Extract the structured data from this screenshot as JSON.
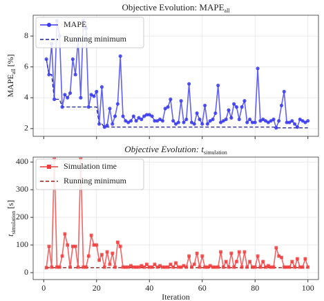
{
  "chart_data": [
    {
      "type": "line",
      "title": {
        "text": "Objective Evolution: MAPE",
        "sub": "all"
      },
      "ylabel": {
        "text": "MAPE",
        "sub": "all",
        "unit": " [%]"
      },
      "x": [
        1,
        2,
        3,
        4,
        5,
        6,
        7,
        8,
        9,
        10,
        11,
        12,
        13,
        14,
        15,
        16,
        17,
        18,
        19,
        20,
        21,
        22,
        23,
        24,
        25,
        26,
        27,
        28,
        29,
        30,
        31,
        32,
        33,
        34,
        35,
        36,
        37,
        38,
        39,
        40,
        41,
        42,
        43,
        44,
        45,
        46,
        47,
        48,
        49,
        50,
        51,
        52,
        53,
        54,
        55,
        56,
        57,
        58,
        59,
        60,
        61,
        62,
        63,
        64,
        65,
        66,
        67,
        68,
        69,
        70,
        71,
        72,
        73,
        74,
        75,
        76,
        77,
        78,
        79,
        80,
        81,
        82,
        83,
        84,
        85,
        86,
        87,
        88,
        89,
        90,
        91,
        92,
        93,
        94,
        95,
        96,
        97,
        98,
        99,
        100
      ],
      "series": [
        {
          "name": "MAPE",
          "color": "#3838f0",
          "marker": "circle",
          "dashed": false,
          "values": [
            6.5,
            5.5,
            7.5,
            3.9,
            9.0,
            8.0,
            3.4,
            4.2,
            4.0,
            4.3,
            6.5,
            5.5,
            7.8,
            4.0,
            9.0,
            8.5,
            3.4,
            4.2,
            4.1,
            4.4,
            2.3,
            4.7,
            2.1,
            2.2,
            3.3,
            2.3,
            2.8,
            3.6,
            6.7,
            2.8,
            2.5,
            2.4,
            2.5,
            2.8,
            2.5,
            2.7,
            2.6,
            2.8,
            2.9,
            2.9,
            2.8,
            2.5,
            2.5,
            2.6,
            2.5,
            3.3,
            3.4,
            3.9,
            2.5,
            2.3,
            2.4,
            3.8,
            2.4,
            2.6,
            4.9,
            2.4,
            2.3,
            3.0,
            2.6,
            2.3,
            3.5,
            2.3,
            2.5,
            2.6,
            3.0,
            4.8,
            2.4,
            2.5,
            2.6,
            3.2,
            2.7,
            3.6,
            3.4,
            2.6,
            3.4,
            3.8,
            2.4,
            2.6,
            2.4,
            2.4,
            5.9,
            2.5,
            2.6,
            2.5,
            2.4,
            2.5,
            2.6,
            2.05,
            2.5,
            3.5,
            4.4,
            2.4,
            2.4,
            2.5,
            2.3,
            2.1,
            2.6,
            2.5,
            2.4,
            2.5
          ]
        },
        {
          "name": "Running minimum",
          "color": "#1c1c8e",
          "marker": "none",
          "dashed": true,
          "values": [
            6.5,
            5.5,
            5.5,
            3.9,
            3.9,
            3.9,
            3.4,
            3.4,
            3.4,
            3.4,
            3.4,
            3.4,
            3.4,
            3.4,
            3.4,
            3.4,
            3.4,
            3.4,
            3.4,
            3.4,
            2.3,
            2.3,
            2.1,
            2.1,
            2.1,
            2.1,
            2.1,
            2.1,
            2.1,
            2.1,
            2.1,
            2.1,
            2.1,
            2.1,
            2.1,
            2.1,
            2.1,
            2.1,
            2.1,
            2.1,
            2.1,
            2.1,
            2.1,
            2.1,
            2.1,
            2.1,
            2.1,
            2.1,
            2.1,
            2.1,
            2.1,
            2.1,
            2.1,
            2.1,
            2.1,
            2.1,
            2.1,
            2.1,
            2.1,
            2.1,
            2.1,
            2.1,
            2.1,
            2.1,
            2.1,
            2.1,
            2.1,
            2.1,
            2.1,
            2.1,
            2.1,
            2.1,
            2.1,
            2.1,
            2.1,
            2.1,
            2.1,
            2.1,
            2.1,
            2.1,
            2.1,
            2.1,
            2.1,
            2.1,
            2.1,
            2.1,
            2.1,
            2.05,
            2.05,
            2.05,
            2.05,
            2.05,
            2.05,
            2.05,
            2.05,
            2.05,
            2.05,
            2.05,
            2.05,
            2.05
          ]
        }
      ],
      "xlim": [
        -4,
        104
      ],
      "xticks": [
        0,
        20,
        40,
        60,
        80,
        100
      ],
      "show_xtick_labels": false,
      "ylim": [
        1.5,
        9.35
      ],
      "yticks": [
        2,
        4,
        6,
        8
      ],
      "grid": true,
      "legend": "upper left"
    },
    {
      "type": "line",
      "title": {
        "text": "Objective Evolution: t",
        "sub": "simulation"
      },
      "ylabel": {
        "text": "t",
        "sub": "simulation",
        "unit": " [s]"
      },
      "xlabel": "Iteration",
      "x": [
        1,
        2,
        3,
        4,
        5,
        6,
        7,
        8,
        9,
        10,
        11,
        12,
        13,
        14,
        15,
        16,
        17,
        18,
        19,
        20,
        21,
        22,
        23,
        24,
        25,
        26,
        27,
        28,
        29,
        30,
        31,
        32,
        33,
        34,
        35,
        36,
        37,
        38,
        39,
        40,
        41,
        42,
        43,
        44,
        45,
        46,
        47,
        48,
        49,
        50,
        51,
        52,
        53,
        54,
        55,
        56,
        57,
        58,
        59,
        60,
        61,
        62,
        63,
        64,
        65,
        66,
        67,
        68,
        69,
        70,
        71,
        72,
        73,
        74,
        75,
        76,
        77,
        78,
        79,
        80,
        81,
        82,
        83,
        84,
        85,
        86,
        87,
        88,
        89,
        90,
        91,
        92,
        93,
        94,
        95,
        96,
        97,
        98,
        99,
        100
      ],
      "series": [
        {
          "name": "Simulation time",
          "color": "#f03c3c",
          "marker": "square",
          "dashed": false,
          "values": [
            18,
            95,
            20,
            410,
            20,
            20,
            60,
            140,
            100,
            20,
            95,
            95,
            20,
            410,
            20,
            20,
            60,
            135,
            100,
            100,
            45,
            65,
            20,
            75,
            30,
            70,
            20,
            110,
            95,
            20,
            20,
            20,
            25,
            20,
            20,
            20,
            25,
            20,
            30,
            20,
            20,
            30,
            20,
            25,
            20,
            20,
            20,
            30,
            20,
            35,
            20,
            20,
            25,
            20,
            60,
            20,
            30,
            70,
            20,
            60,
            20,
            20,
            25,
            20,
            20,
            20,
            75,
            20,
            40,
            20,
            70,
            20,
            40,
            75,
            20,
            75,
            20,
            40,
            20,
            20,
            60,
            20,
            40,
            20,
            25,
            20,
            20,
            90,
            60,
            55,
            20,
            20,
            20,
            40,
            20,
            50,
            20,
            20,
            50,
            20
          ]
        },
        {
          "name": "Running minimum",
          "color": "#8e1c1c",
          "marker": "none",
          "dashed": true,
          "values": [
            18,
            18,
            18,
            18,
            18,
            18,
            18,
            18,
            18,
            18,
            18,
            18,
            18,
            18,
            18,
            18,
            18,
            18,
            18,
            18,
            18,
            18,
            18,
            18,
            18,
            18,
            18,
            18,
            18,
            18,
            18,
            18,
            18,
            18,
            18,
            18,
            18,
            18,
            18,
            18,
            18,
            18,
            18,
            18,
            18,
            18,
            18,
            18,
            18,
            18,
            18,
            18,
            18,
            18,
            18,
            18,
            18,
            18,
            18,
            18,
            18,
            18,
            18,
            18,
            18,
            18,
            18,
            18,
            18,
            18,
            18,
            18,
            18,
            18,
            18,
            18,
            18,
            18,
            18,
            18,
            18,
            18,
            18,
            18,
            18,
            18,
            18,
            18,
            18,
            18,
            18,
            18,
            18,
            18,
            18,
            18,
            18,
            18,
            18,
            18
          ]
        }
      ],
      "xlim": [
        -4,
        104
      ],
      "xticks": [
        0,
        20,
        40,
        60,
        80,
        100
      ],
      "show_xtick_labels": true,
      "ylim": [
        -25,
        418
      ],
      "yticks": [
        0,
        100,
        200,
        300,
        400
      ],
      "grid": true,
      "legend": "upper left"
    }
  ]
}
